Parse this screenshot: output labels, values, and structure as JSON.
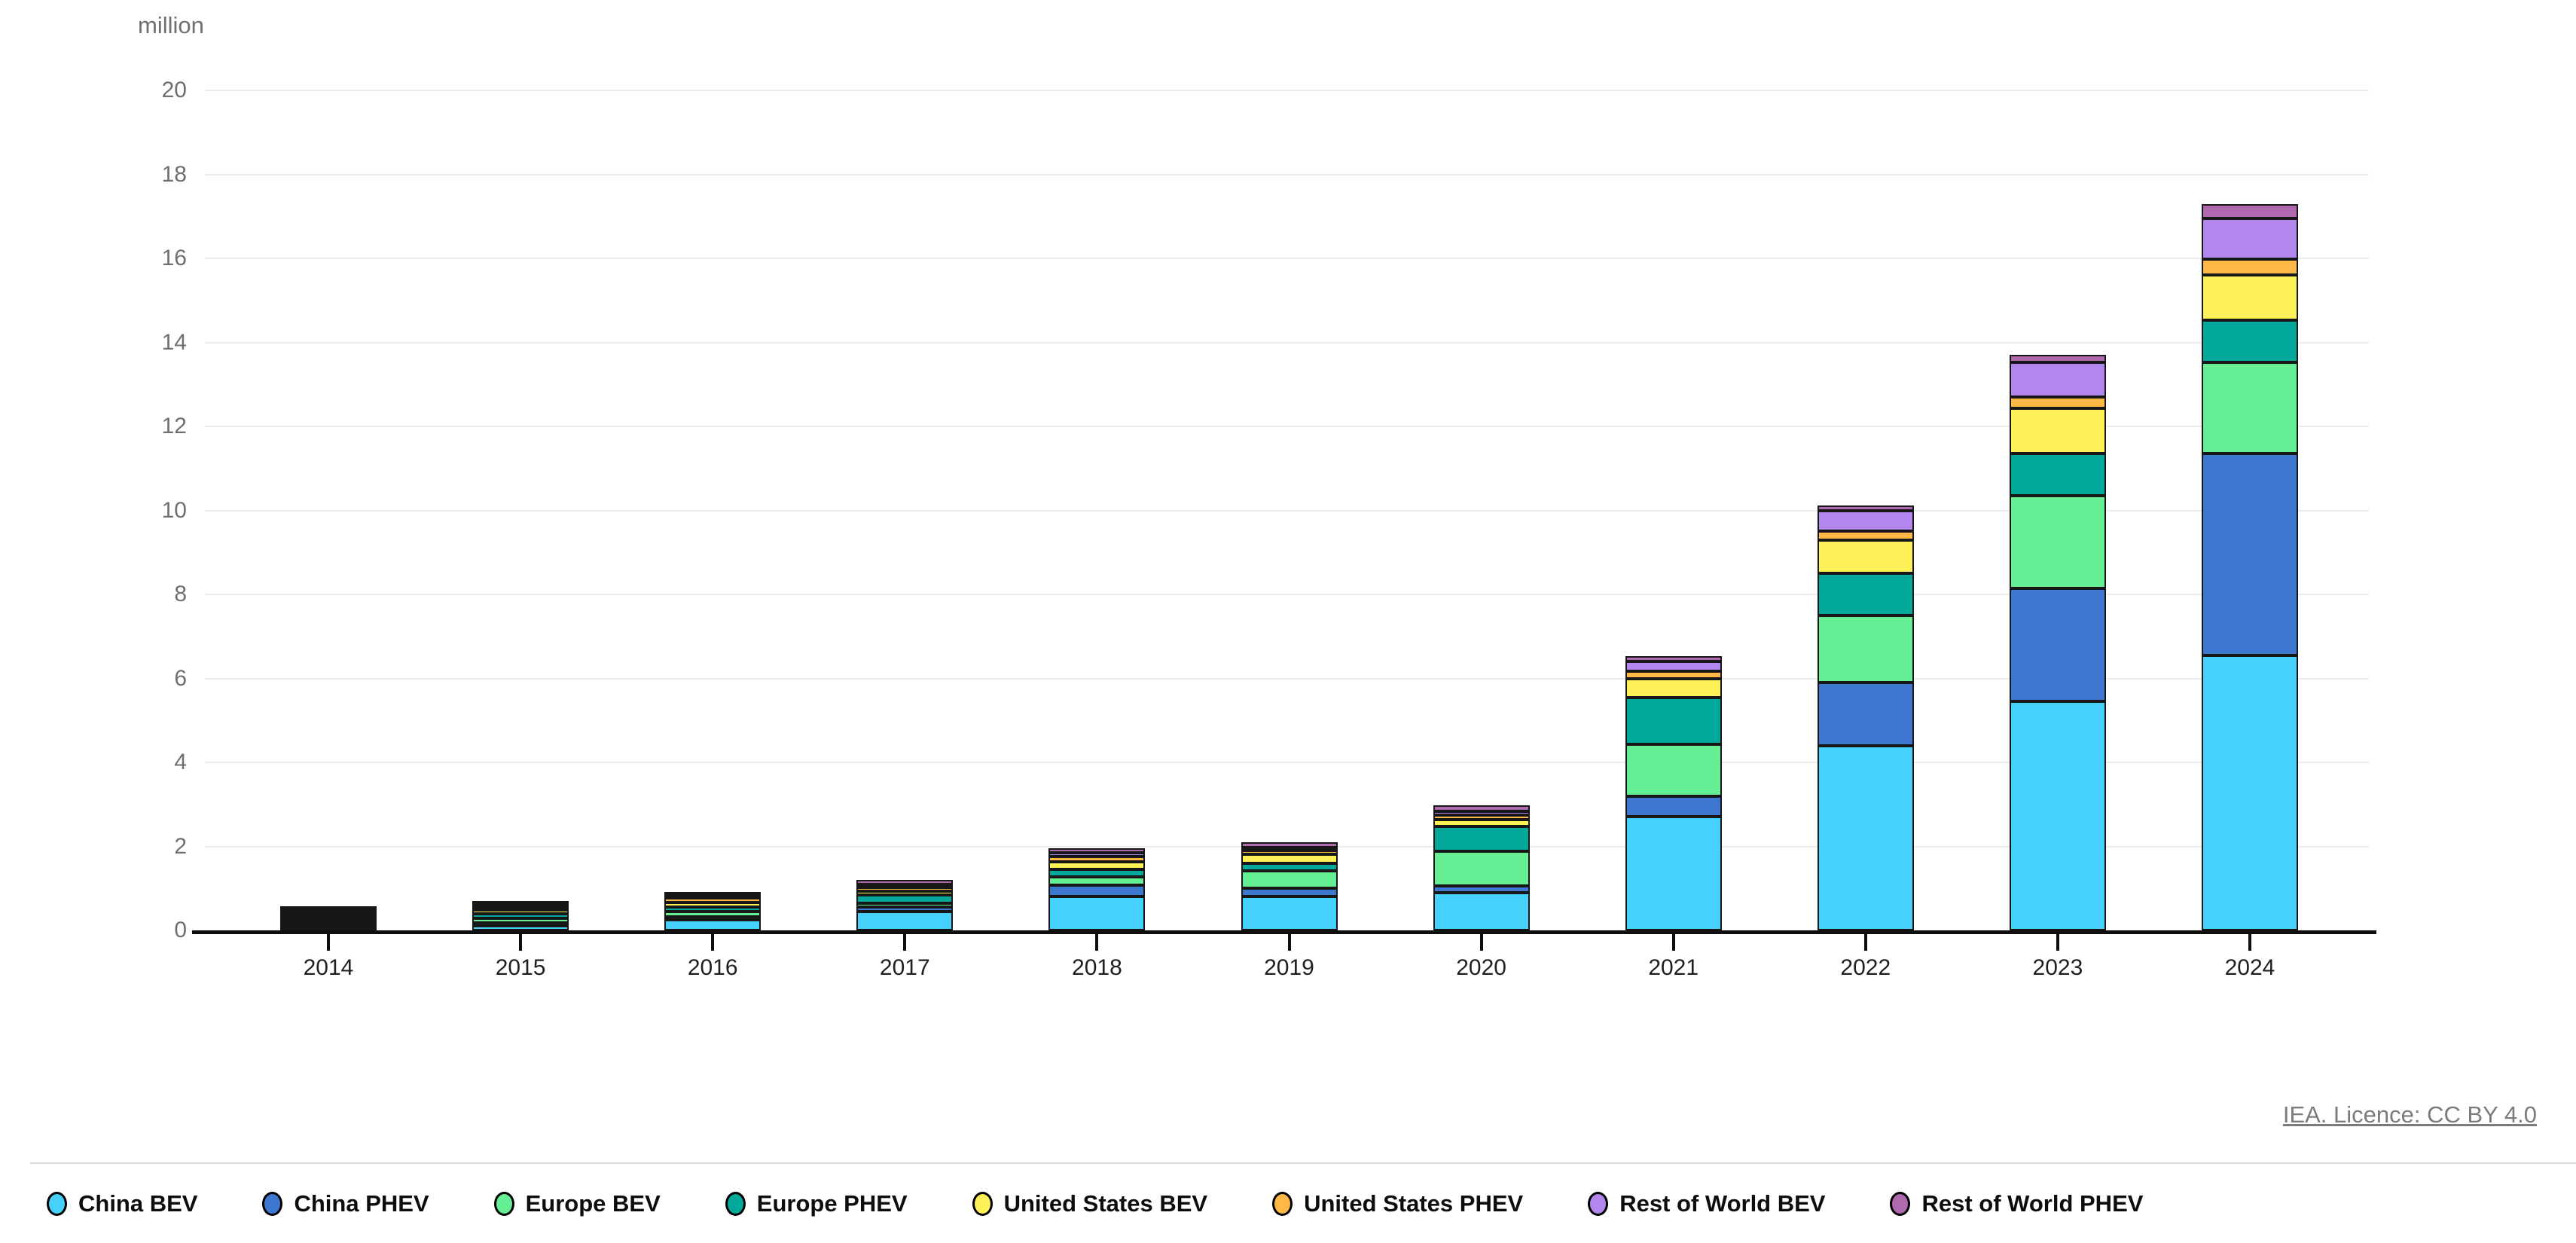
{
  "header": {
    "unit_label": "million"
  },
  "footer": {
    "licence_text": "IEA. Licence: CC BY 4.0"
  },
  "chart_data": {
    "type": "bar",
    "stacked": true,
    "title": "",
    "ylabel": "million",
    "xlabel": "",
    "ylim": [
      0,
      20
    ],
    "ytick_step": 2,
    "grid": "horizontal",
    "legend_position": "bottom",
    "categories": [
      "2014",
      "2015",
      "2016",
      "2017",
      "2018",
      "2019",
      "2020",
      "2021",
      "2022",
      "2023",
      "2024"
    ],
    "series": [
      {
        "name": "China BEV",
        "color": "#45D1FB",
        "values": [
          0.02,
          0.1,
          0.25,
          0.45,
          0.8,
          0.8,
          0.9,
          2.7,
          4.4,
          5.45,
          6.55
        ]
      },
      {
        "name": "China PHEV",
        "color": "#3E77D0",
        "values": [
          0.01,
          0.07,
          0.08,
          0.1,
          0.28,
          0.2,
          0.16,
          0.5,
          1.5,
          2.7,
          4.8
        ]
      },
      {
        "name": "Europe BEV",
        "color": "#66EE94",
        "values": [
          0.07,
          0.12,
          0.12,
          0.1,
          0.2,
          0.42,
          0.82,
          1.23,
          1.6,
          2.2,
          2.17
        ]
      },
      {
        "name": "Europe PHEV",
        "color": "#02A89A",
        "values": [
          0.02,
          0.1,
          0.11,
          0.2,
          0.18,
          0.17,
          0.59,
          1.11,
          1.0,
          1.0,
          1.01
        ]
      },
      {
        "name": "United States BEV",
        "color": "#FEF158",
        "values": [
          0.07,
          0.09,
          0.1,
          0.08,
          0.17,
          0.23,
          0.17,
          0.46,
          0.8,
          1.08,
          1.08
        ]
      },
      {
        "name": "United States PHEV",
        "color": "#FDB845",
        "values": [
          0.08,
          0.02,
          0.12,
          0.1,
          0.13,
          0.08,
          0.11,
          0.18,
          0.2,
          0.27,
          0.37
        ]
      },
      {
        "name": "Rest of World BEV",
        "color": "#B286EC",
        "values": [
          0.02,
          0.02,
          0.04,
          0.03,
          0.09,
          0.07,
          0.08,
          0.22,
          0.5,
          0.82,
          0.98
        ]
      },
      {
        "name": "Rest of World PHEV",
        "color": "#B069AE",
        "values": [
          0.01,
          0.01,
          0.03,
          0.1,
          0.11,
          0.12,
          0.15,
          0.13,
          0.12,
          0.19,
          0.34
        ]
      }
    ]
  }
}
